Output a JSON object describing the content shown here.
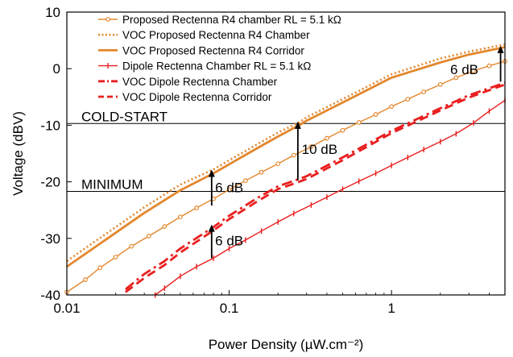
{
  "chart_data": {
    "type": "line",
    "xlabel": "Power Density (µW.cm⁻²)",
    "ylabel": "Voltage (dBV)",
    "xscale": "log",
    "xlim": [
      0.01,
      5
    ],
    "ylim": [
      -40,
      10
    ],
    "xticks": [
      {
        "value": 0.01,
        "label": "0.01"
      },
      {
        "value": 0.1,
        "label": "0.1"
      },
      {
        "value": 1,
        "label": "1"
      }
    ],
    "yticks": [
      {
        "value": 10,
        "label": "10"
      },
      {
        "value": 0,
        "label": "0"
      },
      {
        "value": -10,
        "label": "-10"
      },
      {
        "value": -20,
        "label": "-20"
      },
      {
        "value": -30,
        "label": "-30"
      },
      {
        "value": -40,
        "label": "-40"
      }
    ],
    "legend_position": "top-right",
    "reference_lines": [
      {
        "label": "COLD-START",
        "y": -9.7
      },
      {
        "label": "MINIMUM",
        "y": -21.7
      }
    ],
    "series": [
      {
        "name": "Proposed Rectenna R4 chamber RL = 5.1 kΩ",
        "color": "#E3872D",
        "style": "solid-marker",
        "x": [
          0.01,
          0.013,
          0.016,
          0.02,
          0.025,
          0.032,
          0.04,
          0.05,
          0.063,
          0.08,
          0.1,
          0.126,
          0.158,
          0.2,
          0.25,
          0.32,
          0.4,
          0.5,
          0.63,
          0.8,
          1.0,
          1.26,
          1.58,
          2.0,
          2.5,
          3.2,
          4.0,
          5.0
        ],
        "y": [
          -39.5,
          -37.3,
          -35.2,
          -33.3,
          -31.4,
          -29.6,
          -27.9,
          -26.2,
          -24.6,
          -23.0,
          -21.4,
          -19.8,
          -18.3,
          -16.8,
          -15.3,
          -13.8,
          -12.3,
          -10.9,
          -9.5,
          -8.1,
          -6.7,
          -5.4,
          -4.1,
          -2.8,
          -1.6,
          -0.4,
          0.5,
          1.3
        ]
      },
      {
        "name": "VOC Proposed Rectenna R4 Chamber",
        "color": "#E3872D",
        "style": "dotted",
        "x": [
          0.01,
          0.02,
          0.03,
          0.05,
          0.08,
          0.1,
          0.15,
          0.2,
          0.27,
          0.3,
          0.5,
          1.0,
          2.0,
          3.0,
          5.0
        ],
        "y": [
          -34.0,
          -28.0,
          -24.5,
          -20.5,
          -17.8,
          -16.2,
          -13.3,
          -11.3,
          -9.5,
          -8.6,
          -5.4,
          -1.0,
          1.8,
          3.0,
          4.3
        ]
      },
      {
        "name": "VOC Proposed Rectenna R4 Corridor",
        "color": "#E3872D",
        "style": "solid",
        "x": [
          0.01,
          0.02,
          0.03,
          0.05,
          0.08,
          0.1,
          0.15,
          0.2,
          0.27,
          0.3,
          0.5,
          1.0,
          2.0,
          3.0,
          5.0
        ],
        "y": [
          -35.0,
          -29.0,
          -25.5,
          -21.5,
          -18.5,
          -16.9,
          -14.0,
          -12.0,
          -10.0,
          -9.2,
          -6.0,
          -1.6,
          1.1,
          2.5,
          3.8
        ]
      },
      {
        "name": "Dipole Rectenna Chamber RL = 5.1 kΩ",
        "color": "#E8201F",
        "style": "solid-marker",
        "x": [
          0.035,
          0.04,
          0.05,
          0.063,
          0.08,
          0.1,
          0.126,
          0.158,
          0.2,
          0.25,
          0.32,
          0.4,
          0.5,
          0.63,
          0.8,
          1.0,
          1.26,
          1.58,
          2.0,
          2.5,
          3.2,
          4.0,
          5.0
        ],
        "y": [
          -40.0,
          -38.8,
          -36.7,
          -35.0,
          -33.5,
          -31.8,
          -30.3,
          -28.7,
          -27.1,
          -25.6,
          -24.1,
          -22.7,
          -21.3,
          -19.9,
          -18.5,
          -17.1,
          -15.7,
          -14.3,
          -12.9,
          -11.5,
          -9.6,
          -7.5,
          -5.6
        ]
      },
      {
        "name": "VOC Dipole Rectenna Chamber",
        "color": "#E8201F",
        "style": "dashdot",
        "x": [
          0.023,
          0.03,
          0.04,
          0.05,
          0.08,
          0.1,
          0.15,
          0.2,
          0.27,
          0.3,
          0.5,
          1.0,
          2.0,
          3.0,
          5.0
        ],
        "y": [
          -39.0,
          -36.3,
          -34.0,
          -31.8,
          -28.0,
          -26.0,
          -22.8,
          -20.8,
          -19.5,
          -19.0,
          -15.7,
          -11.0,
          -7.0,
          -4.7,
          -2.5
        ]
      },
      {
        "name": "VOC Dipole Rectenna Corridor",
        "color": "#E8201F",
        "style": "dashed",
        "x": [
          0.023,
          0.03,
          0.04,
          0.05,
          0.08,
          0.1,
          0.15,
          0.2,
          0.27,
          0.3,
          0.5,
          1.0,
          2.0,
          3.0,
          5.0
        ],
        "y": [
          -39.5,
          -37.0,
          -34.7,
          -32.5,
          -28.6,
          -26.6,
          -23.4,
          -21.3,
          -20.0,
          -19.5,
          -16.2,
          -11.4,
          -7.4,
          -5.1,
          -2.8
        ]
      }
    ],
    "annotations": [
      {
        "text": "6 dB",
        "arrow_x": 0.078,
        "from_y": -24.2,
        "to_y": -18.0,
        "text_x": 0.082,
        "text_y": -21.0
      },
      {
        "text": "10 dB",
        "arrow_x": 0.265,
        "from_y": -19.7,
        "to_y": -9.5,
        "text_x": 0.28,
        "text_y": -14.2
      },
      {
        "text": "6 dB",
        "arrow_x": 0.078,
        "from_y": -33.5,
        "to_y": -27.7,
        "text_x": 0.082,
        "text_y": -30.4
      },
      {
        "text": "6 dB",
        "arrow_x": 4.7,
        "from_y": -2.3,
        "to_y": 3.9,
        "text_x": 2.3,
        "text_y": -0.1
      }
    ]
  }
}
